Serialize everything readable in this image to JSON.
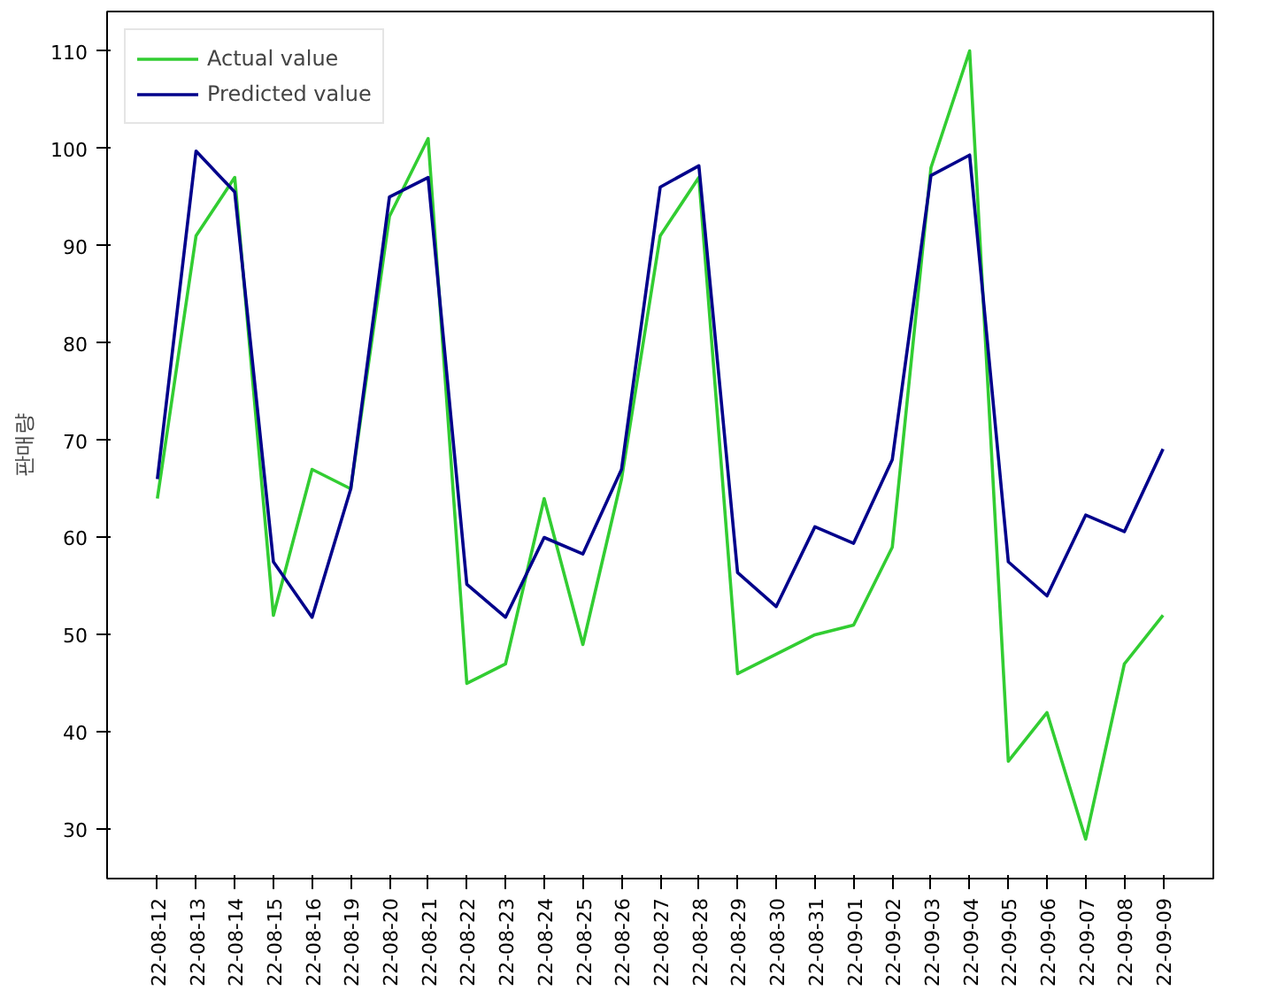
{
  "chart_data": {
    "type": "line",
    "ylabel": "판매량",
    "categories": [
      "22-08-12",
      "22-08-13",
      "22-08-14",
      "22-08-15",
      "22-08-16",
      "22-08-19",
      "22-08-20",
      "22-08-21",
      "22-08-22",
      "22-08-23",
      "22-08-24",
      "22-08-25",
      "22-08-26",
      "22-08-27",
      "22-08-28",
      "22-08-29",
      "22-08-30",
      "22-08-31",
      "22-09-01",
      "22-09-02",
      "22-09-03",
      "22-09-04",
      "22-09-05",
      "22-09-06",
      "22-09-07",
      "22-09-08",
      "22-09-09"
    ],
    "series": [
      {
        "name": "Actual value",
        "color": "#32cd32",
        "values": [
          64,
          91,
          97,
          52,
          67,
          65,
          93,
          101,
          45,
          47,
          64,
          49,
          66,
          91,
          97,
          46,
          48,
          50,
          51,
          59,
          98,
          110,
          37,
          42,
          29,
          47,
          52
        ]
      },
      {
        "name": "Predicted value",
        "color": "#00008b",
        "values": [
          66,
          99.7,
          95.5,
          57.5,
          51.8,
          65,
          95,
          97,
          55.2,
          51.8,
          60,
          58.3,
          67,
          96,
          98.2,
          56.4,
          52.9,
          61.1,
          59.4,
          68,
          97.2,
          99.3,
          57.5,
          54,
          62.3,
          60.6,
          69.1
        ]
      }
    ],
    "ylim": [
      24.95,
      114.05
    ],
    "yticks": [
      30,
      40,
      50,
      60,
      70,
      80,
      90,
      100,
      110
    ],
    "grid": false,
    "legend": "top left",
    "line_style": "solid",
    "marker": "none"
  }
}
